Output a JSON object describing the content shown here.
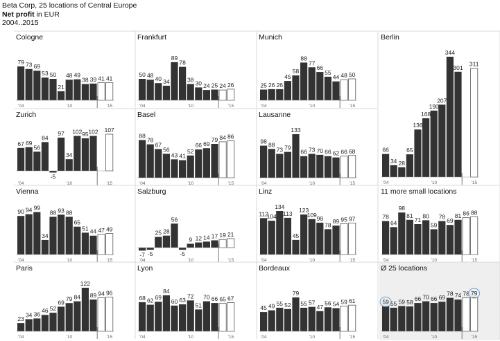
{
  "header": {
    "line1": "Beta Corp, 25 locations of Central Europe",
    "measure": "Net profit",
    "unit": " in EUR",
    "period": "2004..2015"
  },
  "colors": {
    "actual": "#333333",
    "forecast_fill": "#ffffff",
    "forecast_stroke": "#555555",
    "grid": "#d8d8d8",
    "total_bg": "#efefef",
    "highlight": "#6a9fd8"
  },
  "chart_data": {
    "type": "bar",
    "layout": "small-multiples",
    "categories": [
      "2004",
      "2005",
      "2006",
      "2007",
      "2008",
      "2009",
      "2010",
      "2011",
      "2012",
      "2013",
      "2014",
      "2015"
    ],
    "actual_years": [
      "2004",
      "2005",
      "2006",
      "2007",
      "2008",
      "2009",
      "2010",
      "2011",
      "2012",
      "2013"
    ],
    "forecast_years": [
      "2014",
      "2015"
    ],
    "tick_labels": [
      {
        "year": "2004",
        "label": "'04"
      },
      {
        "year": "2010",
        "label": "'10"
      },
      {
        "year": "2015",
        "label": "'15"
      }
    ],
    "series": [
      {
        "name": "Cologne",
        "values": [
          79,
          73,
          69,
          53,
          50,
          21,
          48,
          49,
          38,
          39,
          41,
          41
        ]
      },
      {
        "name": "Frankfurt",
        "values": [
          50,
          48,
          40,
          34,
          89,
          78,
          38,
          30,
          24,
          25,
          24,
          26
        ]
      },
      {
        "name": "Munich",
        "values": [
          25,
          26,
          26,
          45,
          58,
          88,
          77,
          66,
          55,
          44,
          48,
          50
        ]
      },
      {
        "name": "Berlin",
        "values": [
          66,
          34,
          28,
          65,
          136,
          168,
          190,
          207,
          344,
          301,
          null,
          311
        ]
      },
      {
        "name": "Zurich",
        "values": [
          67,
          69,
          56,
          84,
          -5,
          97,
          34,
          102,
          95,
          102,
          null,
          107
        ]
      },
      {
        "name": "Basel",
        "values": [
          88,
          78,
          67,
          56,
          43,
          41,
          52,
          66,
          69,
          79,
          84,
          86
        ]
      },
      {
        "name": "Lausanne",
        "values": [
          98,
          88,
          73,
          79,
          133,
          66,
          73,
          70,
          66,
          62,
          66,
          68
        ]
      },
      {
        "name": "Vienna",
        "values": [
          90,
          94,
          99,
          34,
          88,
          93,
          88,
          65,
          51,
          44,
          47,
          49
        ]
      },
      {
        "name": "Salzburg",
        "values": [
          -7,
          -5,
          25,
          28,
          56,
          -5,
          9,
          12,
          14,
          17,
          19,
          21
        ]
      },
      {
        "name": "Linz",
        "values": [
          112,
          104,
          134,
          113,
          45,
          123,
          109,
          98,
          78,
          89,
          95,
          97
        ]
      },
      {
        "name": "11 more small locations",
        "values": [
          78,
          64,
          98,
          81,
          71,
          80,
          59,
          78,
          69,
          81,
          86,
          88
        ]
      },
      {
        "name": "Paris",
        "values": [
          23,
          34,
          36,
          46,
          52,
          69,
          79,
          84,
          122,
          89,
          94,
          96
        ]
      },
      {
        "name": "Lyon",
        "values": [
          68,
          62,
          69,
          84,
          60,
          63,
          72,
          51,
          70,
          66,
          65,
          67
        ]
      },
      {
        "name": "Bordeaux",
        "values": [
          45,
          49,
          55,
          52,
          79,
          55,
          57,
          47,
          56,
          54,
          59,
          61
        ]
      },
      {
        "name": "Ø 25 locations",
        "values": [
          59,
          55,
          59,
          58,
          66,
          70,
          66,
          69,
          78,
          74,
          78,
          79
        ],
        "highlighted_values": [
          "59",
          "79"
        ]
      }
    ],
    "grid": false,
    "legend": "none"
  }
}
